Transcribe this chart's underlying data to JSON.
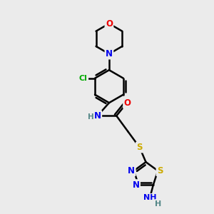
{
  "bg_color": "#ebebeb",
  "atom_colors": {
    "C": "#000000",
    "N": "#0000ee",
    "O": "#ee0000",
    "S": "#ccaa00",
    "Cl": "#00aa00",
    "H": "#558888"
  },
  "bond_color": "#000000",
  "bond_width": 1.8,
  "figsize": [
    3.0,
    3.0
  ],
  "dpi": 100
}
